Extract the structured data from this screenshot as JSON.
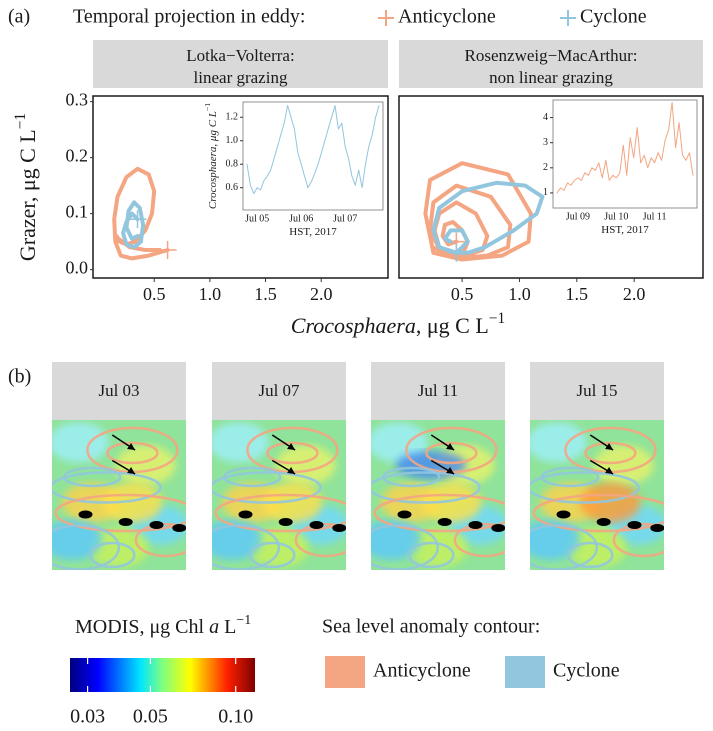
{
  "panel_labels": [
    "(a)",
    "(b)"
  ],
  "legend_title": "Temporal projection in eddy:",
  "chart_data": [
    {
      "type": "line",
      "title": "Lotka−Volterra:",
      "subtitle": "linear grazing",
      "xlabel": [
        "Crocosphaera",
        ", μg C L",
        "−1"
      ],
      "ylabel": [
        "Grazer, μg C L",
        "−1"
      ],
      "xlim": [
        -0.05,
        2.6
      ],
      "ylim": [
        -0.015,
        0.31
      ],
      "xticks": [
        0.5,
        {
          "value": 1,
          "label": "1.0"
        },
        1.5,
        {
          "value": 2,
          "label": "2.0"
        }
      ],
      "yticks": [
        {
          "value": 0,
          "label": "0.0"
        },
        0.1,
        0.2,
        0.3
      ],
      "series": [
        {
          "name": "Anticyclone",
          "color": "#f4a582",
          "x": [
            0.62,
            0.45,
            0.3,
            0.2,
            0.15,
            0.14,
            0.17,
            0.25,
            0.35,
            0.45,
            0.5,
            0.48,
            0.42,
            0.33,
            0.25,
            0.19,
            0.16,
            0.18,
            0.28,
            0.42,
            0.55
          ],
          "values": [
            0.035,
            0.025,
            0.02,
            0.025,
            0.05,
            0.09,
            0.13,
            0.165,
            0.18,
            0.17,
            0.14,
            0.1,
            0.07,
            0.05,
            0.045,
            0.05,
            0.06,
            0.055,
            0.04,
            0.035,
            0.035
          ]
        },
        {
          "name": "Cyclone",
          "color": "#92c5de",
          "x": [
            0.35,
            0.3,
            0.25,
            0.22,
            0.25,
            0.32,
            0.38,
            0.4,
            0.37,
            0.32,
            0.27,
            0.25,
            0.3,
            0.35
          ],
          "values": [
            0.09,
            0.1,
            0.085,
            0.065,
            0.045,
            0.04,
            0.05,
            0.08,
            0.11,
            0.12,
            0.105,
            0.075,
            0.055,
            0.06
          ]
        }
      ]
    },
    {
      "type": "line",
      "title": "Rosenzweig−MacArthur:",
      "subtitle": "non linear grazing",
      "xlim": [
        -0.05,
        2.6
      ],
      "ylim": [
        -0.015,
        0.31
      ],
      "xticks": [
        0.5,
        {
          "value": 1,
          "label": "1.0"
        },
        1.5,
        {
          "value": 2,
          "label": "2.0"
        }
      ],
      "series": [
        {
          "name": "Anticyclone",
          "color": "#f4a582",
          "x": [
            0.45,
            0.38,
            0.33,
            0.35,
            0.42,
            0.5,
            0.55,
            0.52,
            0.42,
            0.3,
            0.26,
            0.3,
            0.45,
            0.62,
            0.72,
            0.68,
            0.52,
            0.32,
            0.22,
            0.25,
            0.45,
            0.75,
            0.92,
            0.9,
            0.72,
            0.45,
            0.24,
            0.18,
            0.22,
            0.5,
            0.9,
            1.1,
            1.08,
            0.85,
            0.5,
            0.25,
            0.18
          ],
          "values": [
            0.05,
            0.045,
            0.06,
            0.08,
            0.085,
            0.07,
            0.05,
            0.035,
            0.03,
            0.04,
            0.07,
            0.1,
            0.12,
            0.1,
            0.06,
            0.035,
            0.025,
            0.03,
            0.07,
            0.12,
            0.15,
            0.13,
            0.08,
            0.04,
            0.025,
            0.02,
            0.04,
            0.1,
            0.16,
            0.19,
            0.17,
            0.1,
            0.05,
            0.025,
            0.018,
            0.03,
            0.1
          ]
        },
        {
          "name": "Cyclone",
          "color": "#92c5de",
          "x": [
            0.45,
            0.5,
            0.55,
            0.7,
            0.95,
            1.15,
            1.2,
            1.05,
            0.8,
            0.5,
            0.3,
            0.25,
            0.3,
            0.45,
            0.55,
            0.5,
            0.4,
            0.35,
            0.4
          ],
          "values": [
            0.03,
            0.03,
            0.03,
            0.04,
            0.07,
            0.1,
            0.13,
            0.15,
            0.155,
            0.14,
            0.11,
            0.07,
            0.04,
            0.03,
            0.05,
            0.07,
            0.07,
            0.055,
            0.05
          ]
        }
      ]
    },
    {
      "type": "line",
      "xlabel": [
        "HST, 2017"
      ],
      "ylabel": [
        "Crocosphaera",
        ", μg C L",
        "−1"
      ],
      "ylim": [
        0.41,
        1.33
      ],
      "yticks": [
        0.6,
        0.8,
        {
          "value": 1,
          "label": "1.0"
        },
        1.2
      ],
      "categories": [
        null,
        null,
        null,
        "Jul 05",
        null,
        null,
        null,
        null,
        null,
        null,
        null,
        null,
        null,
        null,
        null,
        null,
        "Jul 06",
        null,
        null,
        null,
        null,
        null,
        null,
        null,
        null,
        null,
        null,
        null,
        null,
        "Jul 07",
        null,
        null,
        null,
        null,
        null,
        null,
        null,
        null,
        null,
        null
      ],
      "series": [
        {
          "name": "Cyclone",
          "color": "#92c5de",
          "values": [
            0.8,
            0.62,
            0.55,
            0.6,
            0.58,
            0.66,
            0.7,
            0.75,
            0.85,
            0.95,
            1.05,
            1.15,
            1.3,
            1.2,
            1.1,
            0.9,
            0.8,
            0.7,
            0.6,
            0.65,
            0.72,
            0.8,
            0.9,
            1.0,
            1.1,
            1.2,
            1.3,
            1.1,
            1.15,
            0.95,
            0.85,
            0.7,
            0.62,
            0.75,
            0.6,
            0.8,
            0.95,
            1.05,
            1.2,
            1.3
          ]
        }
      ]
    },
    {
      "type": "line",
      "xlabel": [
        "HST, 2017"
      ],
      "ylim": [
        0.4,
        4.7
      ],
      "yticks": [
        1,
        2,
        3,
        4
      ],
      "categories": [
        null,
        null,
        null,
        null,
        null,
        null,
        "Jul 09",
        null,
        null,
        null,
        null,
        null,
        null,
        null,
        null,
        null,
        null,
        "Jul 10",
        null,
        null,
        null,
        null,
        null,
        null,
        null,
        null,
        null,
        null,
        "Jul 11",
        null,
        null,
        null,
        null,
        null,
        null,
        null,
        null,
        null,
        null,
        null
      ],
      "series": [
        {
          "name": "Anticyclone",
          "color": "#f4a582",
          "values": [
            1.0,
            1.2,
            1.1,
            1.4,
            1.3,
            1.5,
            1.6,
            1.5,
            1.8,
            1.7,
            2.0,
            1.9,
            2.2,
            1.6,
            2.3,
            1.5,
            1.7,
            1.6,
            1.8,
            2.9,
            1.7,
            3.2,
            2.4,
            3.6,
            2.2,
            2.5,
            2.0,
            2.4,
            2.2,
            2.6,
            2.3,
            3.1,
            3.5,
            4.6,
            2.8,
            3.8,
            2.5,
            2.3,
            2.6,
            1.7
          ]
        }
      ]
    }
  ],
  "maps": [
    {
      "title": "Jul 03"
    },
    {
      "title": "Jul 07"
    },
    {
      "title": "Jul 11"
    },
    {
      "title": "Jul 15"
    }
  ],
  "colorbar": {
    "title": [
      "MODIS, μg Chl ",
      "a",
      " L",
      "−1"
    ],
    "log": true,
    "lim": [
      0.026,
      0.117
    ],
    "ticks": [
      0.03,
      0.05,
      {
        "value": 0.1,
        "label": "0.10"
      }
    ]
  },
  "contour_legend": {
    "title": "Sea level anomaly contour:",
    "items": [
      {
        "name": "Anticyclone",
        "color": "#f4a582"
      },
      {
        "name": "Cyclone",
        "color": "#92c5de"
      }
    ]
  }
}
